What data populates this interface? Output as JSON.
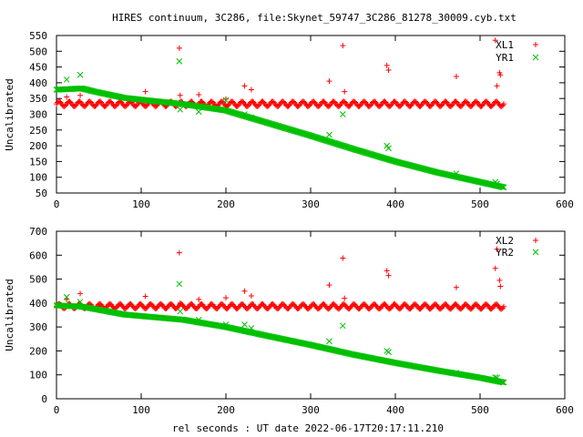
{
  "title": "HIRES continuum, 3C286, file:Skynet_59747_3C286_81278_30009.cyb.txt",
  "colors": {
    "xl": "#ff0000",
    "yr": "#00c000"
  },
  "chart_data": [
    {
      "type": "scatter",
      "title": "HIRES continuum, 3C286, file:Skynet_59747_3C286_81278_30009.cyb.txt",
      "xlabel": "",
      "ylabel": "Uncalibrated",
      "xlim": [
        0,
        600
      ],
      "ylim": [
        50,
        550
      ],
      "xticks": [
        0,
        100,
        200,
        300,
        400,
        500,
        600
      ],
      "yticks": [
        50,
        100,
        150,
        200,
        250,
        300,
        350,
        400,
        450,
        500,
        550
      ],
      "grid": false,
      "legend": "top-right",
      "series": [
        {
          "name": "XL1",
          "marker": "plus",
          "color": "#ff0000",
          "trend": {
            "x_start": 0,
            "x_end": 528,
            "y_start": 333,
            "y_end": 333,
            "oscillation": 8,
            "period": 12
          },
          "outliers": [
            [
              12,
              355
            ],
            [
              28,
              360
            ],
            [
              105,
              372
            ],
            [
              145,
              510
            ],
            [
              146,
              360
            ],
            [
              168,
              362
            ],
            [
              200,
              348
            ],
            [
              222,
              390
            ],
            [
              230,
              378
            ],
            [
              322,
              405
            ],
            [
              338,
              518
            ],
            [
              340,
              372
            ],
            [
              390,
              455
            ],
            [
              392,
              440
            ],
            [
              472,
              420
            ],
            [
              518,
              535
            ],
            [
              520,
              390
            ],
            [
              523,
              432
            ],
            [
              524,
              425
            ]
          ]
        },
        {
          "name": "YR1",
          "marker": "cross",
          "color": "#00c000",
          "trend": {
            "points": [
              [
                0,
                378
              ],
              [
                30,
                382
              ],
              [
                45,
                372
              ],
              [
                80,
                352
              ],
              [
                150,
                332
              ],
              [
                200,
                312
              ],
              [
                250,
                272
              ],
              [
                300,
                232
              ],
              [
                350,
                190
              ],
              [
                400,
                150
              ],
              [
                450,
                115
              ],
              [
                500,
                85
              ],
              [
                528,
                68
              ]
            ]
          },
          "outliers": [
            [
              12,
              410
            ],
            [
              28,
              425
            ],
            [
              145,
              468
            ],
            [
              146,
              315
            ],
            [
              168,
              308
            ],
            [
              200,
              345
            ],
            [
              222,
              300
            ],
            [
              230,
              290
            ],
            [
              322,
              235
            ],
            [
              338,
              300
            ],
            [
              390,
              200
            ],
            [
              392,
              192
            ],
            [
              472,
              112
            ],
            [
              518,
              85
            ],
            [
              520,
              80
            ]
          ]
        }
      ]
    },
    {
      "type": "scatter",
      "xlabel": "rel seconds : UT date 2022-06-17T20:17:11.210",
      "ylabel": "Uncalibrated",
      "xlim": [
        0,
        600
      ],
      "ylim": [
        0,
        700
      ],
      "xticks": [
        0,
        100,
        200,
        300,
        400,
        500,
        600
      ],
      "yticks": [
        0,
        100,
        200,
        300,
        400,
        500,
        600,
        700
      ],
      "grid": false,
      "legend": "top-right",
      "series": [
        {
          "name": "XL2",
          "marker": "plus",
          "color": "#ff0000",
          "trend": {
            "x_start": 0,
            "x_end": 528,
            "y_start": 387,
            "y_end": 385,
            "oscillation": 10,
            "period": 12
          },
          "outliers": [
            [
              12,
              415
            ],
            [
              28,
              440
            ],
            [
              105,
              428
            ],
            [
              145,
              610
            ],
            [
              146,
              400
            ],
            [
              168,
              415
            ],
            [
              200,
              422
            ],
            [
              222,
              450
            ],
            [
              230,
              430
            ],
            [
              322,
              475
            ],
            [
              338,
              588
            ],
            [
              340,
              420
            ],
            [
              390,
              535
            ],
            [
              392,
              515
            ],
            [
              472,
              465
            ],
            [
              518,
              545
            ],
            [
              520,
              625
            ],
            [
              523,
              495
            ],
            [
              524,
              470
            ]
          ]
        },
        {
          "name": "YR2",
          "marker": "cross",
          "color": "#00c000",
          "trend": {
            "points": [
              [
                0,
                390
              ],
              [
                30,
                385
              ],
              [
                50,
                372
              ],
              [
                80,
                352
              ],
              [
                150,
                330
              ],
              [
                200,
                300
              ],
              [
                250,
                262
              ],
              [
                300,
                225
              ],
              [
                350,
                185
              ],
              [
                400,
                150
              ],
              [
                450,
                118
              ],
              [
                500,
                88
              ],
              [
                528,
                68
              ]
            ]
          },
          "outliers": [
            [
              12,
              425
            ],
            [
              28,
              405
            ],
            [
              145,
              480
            ],
            [
              146,
              365
            ],
            [
              168,
              330
            ],
            [
              200,
              310
            ],
            [
              222,
              310
            ],
            [
              230,
              295
            ],
            [
              322,
              240
            ],
            [
              338,
              305
            ],
            [
              390,
              200
            ],
            [
              392,
              195
            ],
            [
              472,
              108
            ],
            [
              518,
              90
            ],
            [
              520,
              88
            ]
          ]
        }
      ]
    }
  ]
}
